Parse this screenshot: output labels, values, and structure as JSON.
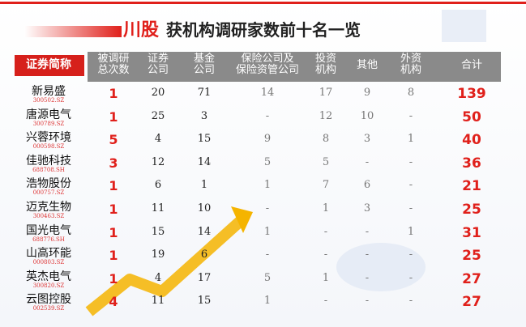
{
  "header": {
    "title_highlight": "川股",
    "title": "获机构调研家数前十名一览"
  },
  "table": {
    "columns": [
      "证券简称",
      "被调研\n总次数",
      "证券\n公司",
      "基金\n公司",
      "保险公司及\n保险资管公司",
      "投资\n机构",
      "其他",
      "外资\n机构",
      "合计"
    ],
    "rows": [
      {
        "name": "新易盛",
        "code": "300502.SZ",
        "cells": [
          1,
          20,
          71,
          14,
          17,
          9,
          8,
          139
        ]
      },
      {
        "name": "唐源电气",
        "code": "300789.SZ",
        "cells": [
          1,
          25,
          3,
          "-",
          12,
          10,
          "-",
          50
        ]
      },
      {
        "name": "兴蓉环境",
        "code": "000598.SZ",
        "cells": [
          5,
          4,
          15,
          9,
          8,
          3,
          1,
          40
        ]
      },
      {
        "name": "佳驰科技",
        "code": "688708.SH",
        "cells": [
          3,
          12,
          14,
          5,
          5,
          "-",
          "-",
          36
        ]
      },
      {
        "name": "浩物股份",
        "code": "000757.SZ",
        "cells": [
          1,
          6,
          1,
          1,
          7,
          6,
          "-",
          21
        ]
      },
      {
        "name": "迈克生物",
        "code": "300463.SZ",
        "cells": [
          1,
          11,
          10,
          "-",
          1,
          3,
          "-",
          25
        ]
      },
      {
        "name": "国光电气",
        "code": "688776.SH",
        "cells": [
          1,
          15,
          14,
          1,
          "-",
          "-",
          1,
          31
        ]
      },
      {
        "name": "山高环能",
        "code": "000803.SZ",
        "cells": [
          1,
          19,
          6,
          "-",
          "-",
          "-",
          "-",
          25
        ]
      },
      {
        "name": "英杰电气",
        "code": "300820.SZ",
        "cells": [
          1,
          4,
          17,
          5,
          1,
          "-",
          "-",
          27
        ]
      },
      {
        "name": "云图控股",
        "code": "002539.SZ",
        "cells": [
          4,
          11,
          15,
          1,
          "-",
          "-",
          "-",
          27
        ]
      }
    ]
  }
}
